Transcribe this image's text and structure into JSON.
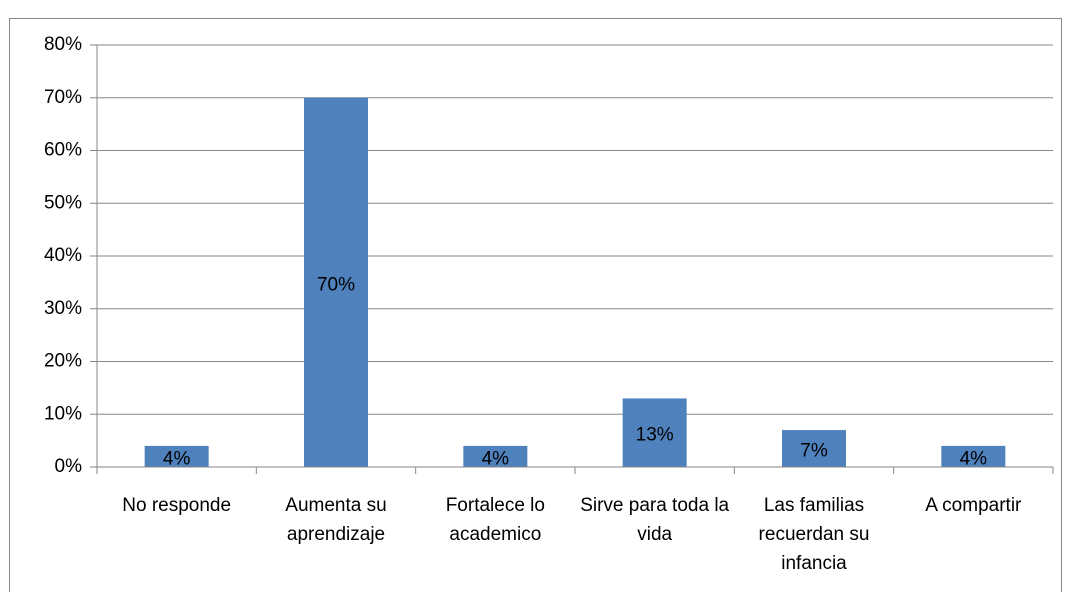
{
  "chart_data": {
    "type": "bar",
    "categories": [
      "No responde",
      "Aumenta su aprendizaje",
      "Fortalece lo academico",
      "Sirve para toda la vida",
      "Las familias recuerdan su infancia",
      "A compartir"
    ],
    "values": [
      4,
      70,
      4,
      13,
      7,
      4
    ],
    "value_labels": [
      "4%",
      "70%",
      "4%",
      "13%",
      "7%",
      "4%"
    ],
    "color": "#4f81bd",
    "ylim": [
      0,
      80
    ],
    "yticks": [
      {
        "value": 0,
        "label": "0%"
      },
      {
        "value": 10,
        "label": "10%"
      },
      {
        "value": 20,
        "label": "20%"
      },
      {
        "value": 30,
        "label": "30%"
      },
      {
        "value": 40,
        "label": "40%"
      },
      {
        "value": 50,
        "label": "50%"
      },
      {
        "value": 60,
        "label": "60%"
      },
      {
        "value": 70,
        "label": "70%"
      },
      {
        "value": 80,
        "label": "80%"
      }
    ],
    "grid": true
  }
}
